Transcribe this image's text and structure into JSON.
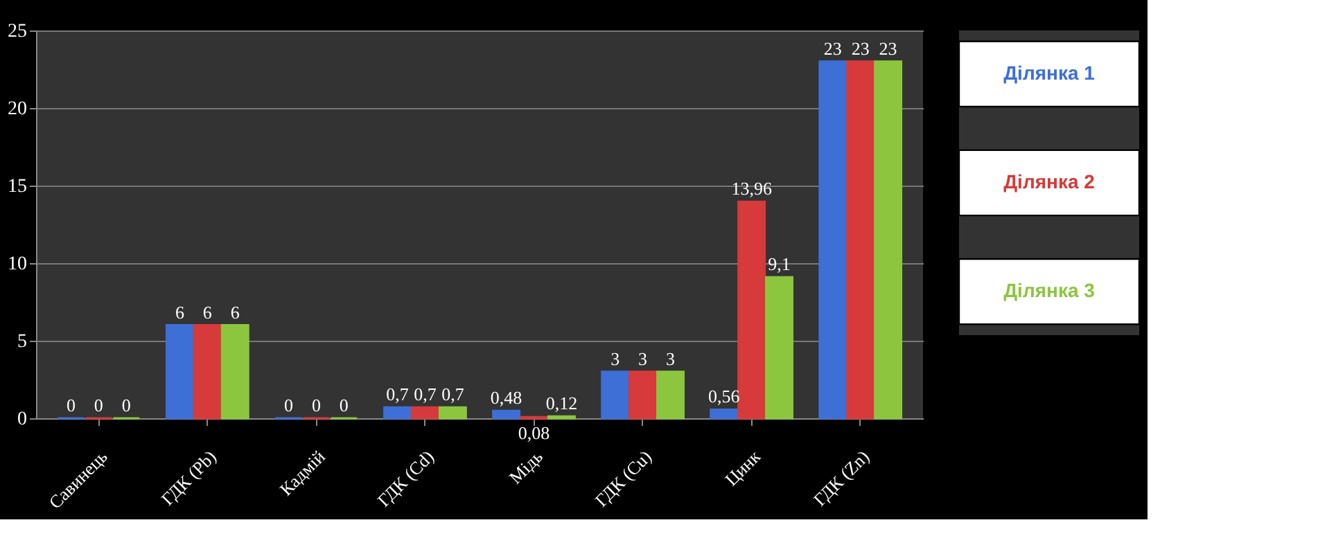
{
  "chart_data": {
    "type": "bar",
    "categories": [
      "Савинець",
      "ГДК (Pb)",
      "Кадмій",
      "ГДК (Cd)",
      "Мідь",
      "ГДК (Cu)",
      "Цинк",
      "ГДК (Zn)"
    ],
    "series": [
      {
        "name": "Ділянка 1",
        "color": "#3d6fd6",
        "values": [
          0,
          6,
          0,
          0.7,
          0.48,
          3,
          0.56,
          23
        ],
        "value_labels": [
          "0",
          "6",
          "0",
          "0,7",
          "0,48",
          "3",
          "0,56",
          "23"
        ]
      },
      {
        "name": "Ділянка 2",
        "color": "#d63a3a",
        "values": [
          0,
          6,
          0,
          0.7,
          0.08,
          3,
          13.96,
          23
        ],
        "value_labels": [
          "0",
          "6",
          "0",
          "0,7",
          "0,08",
          "3",
          "13,96",
          "23"
        ]
      },
      {
        "name": "Ділянка 3",
        "color": "#8cc63e",
        "values": [
          0,
          6,
          0,
          0.7,
          0.12,
          3,
          9.1,
          23
        ],
        "value_labels": [
          "0",
          "6",
          "0",
          "0,7",
          "0,12",
          "3",
          "9,1",
          "23"
        ]
      }
    ],
    "ylim": [
      0,
      25
    ],
    "yticks": [
      0,
      5,
      10,
      15,
      20,
      25
    ],
    "grid": "y",
    "legend": "right"
  }
}
